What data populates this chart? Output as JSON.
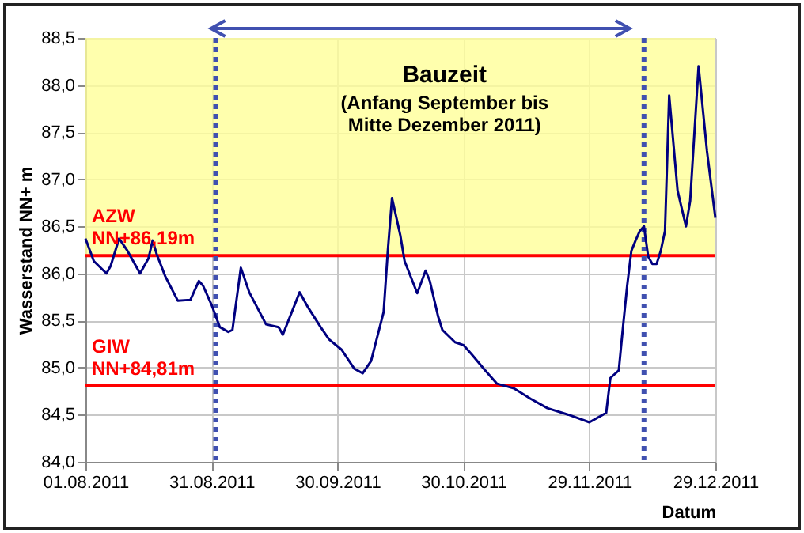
{
  "chart_data": {
    "type": "line",
    "xlabel": "Datum",
    "ylabel": "Wasserstand NN+ m",
    "annotations": [
      "Bauzeit",
      "(Anfang September bis\nMitte Dezember 2011)"
    ],
    "x": [
      "2011-08-01",
      "2011-08-03",
      "2011-08-06",
      "2011-08-07",
      "2011-08-09",
      "2011-08-11",
      "2011-08-14",
      "2011-08-16",
      "2011-08-17",
      "2011-08-18",
      "2011-08-20",
      "2011-08-23",
      "2011-08-26",
      "2011-08-28",
      "2011-08-29",
      "2011-08-31",
      "2011-09-02",
      "2011-09-04",
      "2011-09-05",
      "2011-09-07",
      "2011-09-09",
      "2011-09-11",
      "2011-09-13",
      "2011-09-16",
      "2011-09-17",
      "2011-09-21",
      "2011-09-23",
      "2011-09-26",
      "2011-09-28",
      "2011-10-01",
      "2011-10-04",
      "2011-10-06",
      "2011-10-08",
      "2011-10-11",
      "2011-10-12",
      "2011-10-13",
      "2011-10-15",
      "2011-10-16",
      "2011-10-19",
      "2011-10-21",
      "2011-10-22",
      "2011-10-24",
      "2011-10-25",
      "2011-10-28",
      "2011-10-30",
      "2011-11-01",
      "2011-11-04",
      "2011-11-07",
      "2011-11-11",
      "2011-11-15",
      "2011-11-19",
      "2011-11-24",
      "2011-11-29",
      "2011-12-03",
      "2011-12-04",
      "2011-12-06",
      "2011-12-07",
      "2011-12-08",
      "2011-12-09",
      "2011-12-10",
      "2011-12-11",
      "2011-12-12",
      "2011-12-13",
      "2011-12-14",
      "2011-12-15",
      "2011-12-16",
      "2011-12-17",
      "2011-12-18",
      "2011-12-20",
      "2011-12-22",
      "2011-12-23",
      "2011-12-25",
      "2011-12-27",
      "2011-12-29"
    ],
    "series": [
      {
        "color": "#000080",
        "values": [
          86.37,
          86.13,
          86.0,
          86.08,
          86.37,
          86.24,
          86.0,
          86.16,
          86.35,
          86.2,
          85.97,
          85.71,
          85.72,
          85.92,
          85.87,
          85.67,
          85.43,
          85.38,
          85.4,
          86.06,
          85.8,
          85.63,
          85.46,
          85.43,
          85.35,
          85.8,
          85.64,
          85.43,
          85.3,
          85.19,
          84.99,
          84.94,
          85.07,
          85.59,
          86.24,
          86.8,
          86.4,
          86.13,
          85.79,
          86.03,
          85.92,
          85.54,
          85.4,
          85.27,
          85.24,
          85.14,
          84.98,
          84.83,
          84.78,
          84.67,
          84.57,
          84.5,
          84.42,
          84.52,
          84.89,
          84.97,
          85.43,
          85.87,
          86.24,
          86.35,
          86.45,
          86.5,
          86.18,
          86.1,
          86.1,
          86.24,
          86.45,
          87.89,
          86.88,
          86.5,
          86.77,
          88.2,
          87.3,
          86.59
        ]
      }
    ],
    "xlim": [
      "2011-08-01",
      "2011-12-29"
    ],
    "xticks": [
      {
        "value": "2011-08-01",
        "label": "01.08.2011"
      },
      {
        "value": "2011-08-31",
        "label": "31.08.2011"
      },
      {
        "value": "2011-09-30",
        "label": "30.09.2011"
      },
      {
        "value": "2011-10-30",
        "label": "30.10.2011"
      },
      {
        "value": "2011-11-29",
        "label": "29.11.2011"
      },
      {
        "value": "2011-12-29",
        "label": "29.12.2011"
      }
    ],
    "ylim": [
      84.0,
      88.5
    ],
    "yticks": [
      {
        "value": 84.0,
        "label": "84,0"
      },
      {
        "value": 84.5,
        "label": "84,5"
      },
      {
        "value": 85.0,
        "label": "85,0"
      },
      {
        "value": 85.5,
        "label": "85,5"
      },
      {
        "value": 86.0,
        "label": "86,0"
      },
      {
        "value": 86.5,
        "label": "86,5"
      },
      {
        "value": 87.0,
        "label": "87,0"
      },
      {
        "value": 87.5,
        "label": "87,5"
      },
      {
        "value": 88.0,
        "label": "88,0"
      },
      {
        "value": 88.5,
        "label": "88,5"
      }
    ],
    "grid": true,
    "marker": "none",
    "line_style": "solid",
    "bands": [
      {
        "axis": "y",
        "from": 86.19,
        "to": 88.5,
        "color": "#ffff99"
      }
    ],
    "ref_lines": [
      {
        "axis": "y",
        "value": 86.19,
        "label": "AZW\nNN+86,19m",
        "color": "#ff0000",
        "line_style": "solid"
      },
      {
        "axis": "y",
        "value": 84.81,
        "label": "GIW\nNN+84,81m",
        "color": "#ff0000",
        "line_style": "solid"
      },
      {
        "axis": "x",
        "value": "2011-09-01",
        "color": "#4050b0",
        "line_style": "dotted"
      },
      {
        "axis": "x",
        "value": "2011-12-12",
        "color": "#4050b0",
        "line_style": "dotted"
      }
    ]
  }
}
